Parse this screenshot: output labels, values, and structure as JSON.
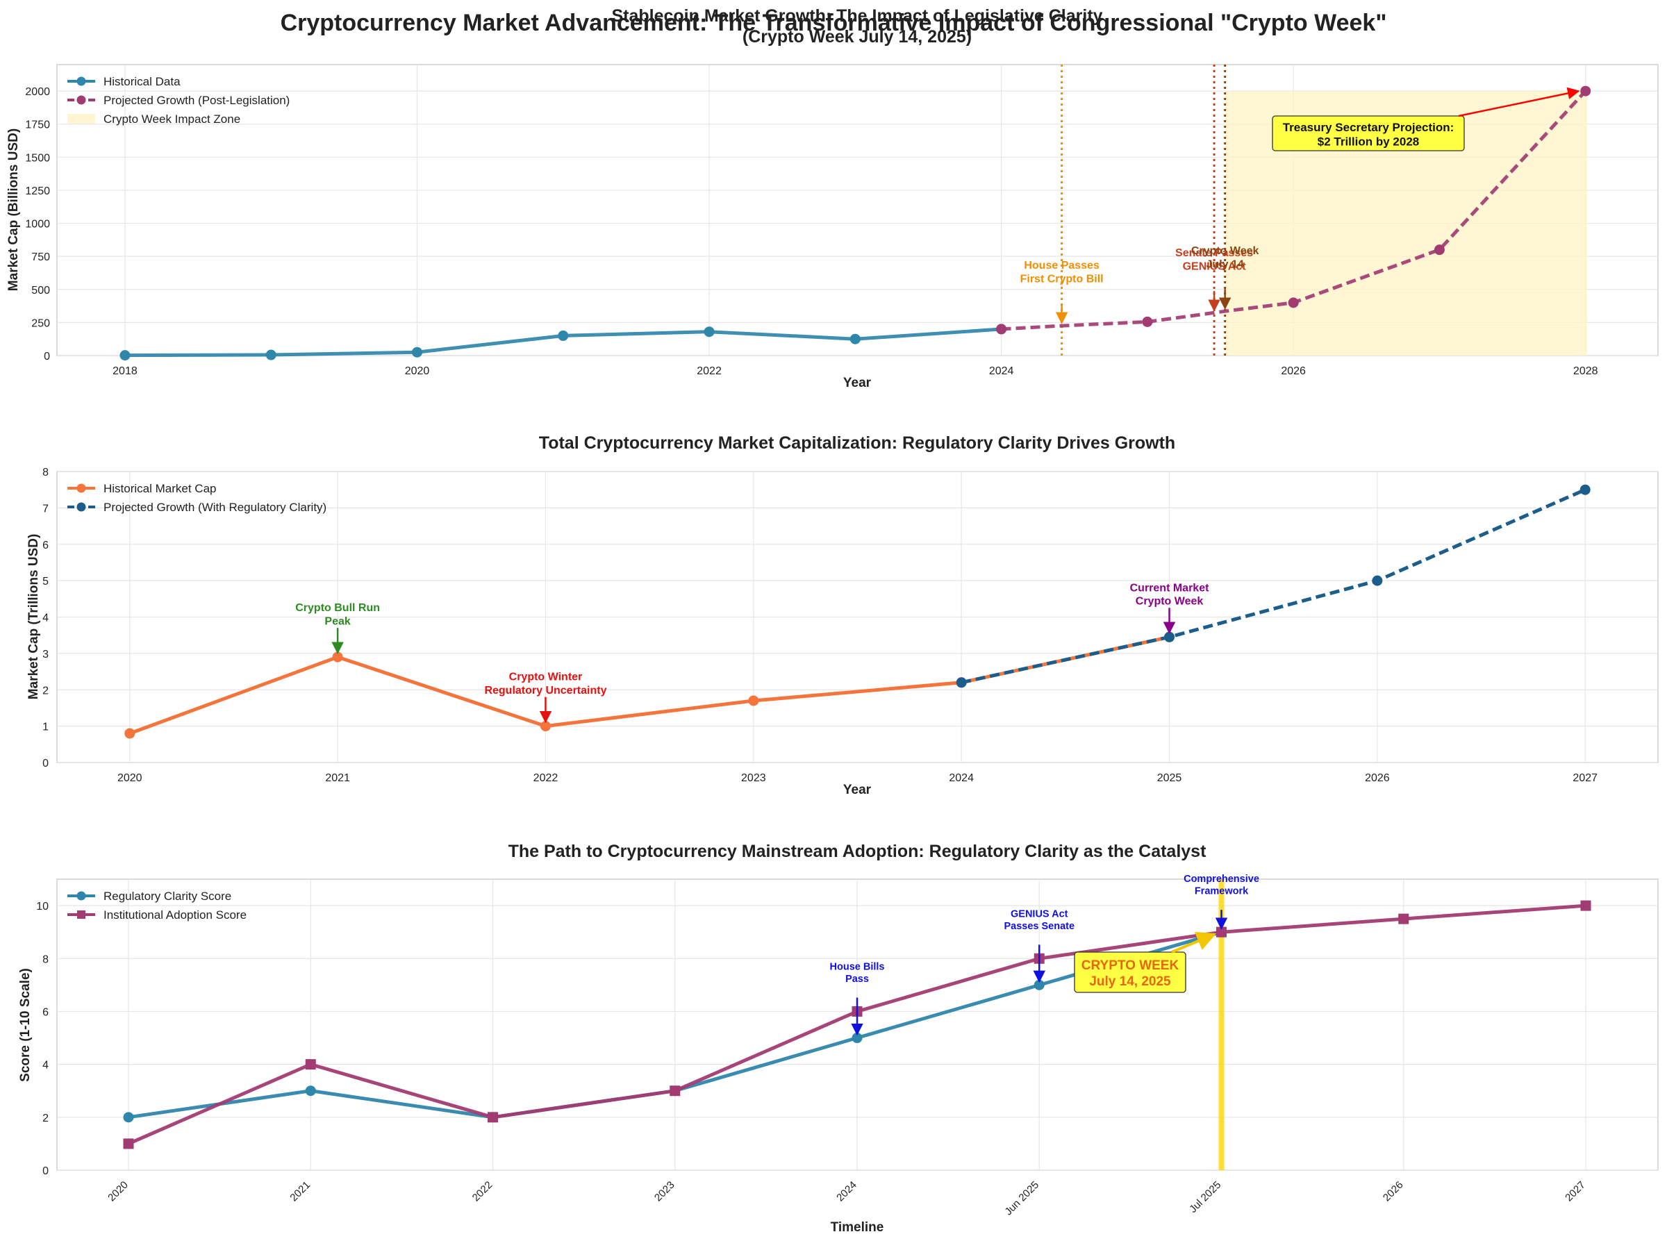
{
  "figure": {
    "suptitle": "Cryptocurrency Market Advancement: The Transformative Impact of Congressional \"Crypto Week\""
  },
  "chart_data": [
    {
      "type": "line",
      "title": "Stablecoin Market Growth: The Impact of Legislative Clarity\n(Crypto Week July 14, 2025)",
      "xlabel": "Year",
      "ylabel": "Market Cap (Billions USD)",
      "xlim": [
        "2017-07-15",
        "2028-07-01"
      ],
      "ylim": [
        0,
        2200
      ],
      "xticks": [
        "2018",
        "2020",
        "2022",
        "2024",
        "2026",
        "2028"
      ],
      "yticks": [
        0,
        250,
        500,
        750,
        1000,
        1250,
        1500,
        1750,
        2000
      ],
      "grid": true,
      "legend": "top-left",
      "series": [
        {
          "name": "Historical Data",
          "color": "#2E86AB",
          "style": "solid",
          "marker": "circle",
          "x": [
            "2018-01-01",
            "2019-01-01",
            "2020-01-01",
            "2021-01-01",
            "2022-01-01",
            "2023-01-01",
            "2024-01-01"
          ],
          "y": [
            2,
            5,
            25,
            150,
            180,
            125,
            200
          ]
        },
        {
          "name": "Projected Growth (Post-Legislation)",
          "color": "#A23B72",
          "style": "dashed",
          "marker": "circle",
          "x": [
            "2024-01-01",
            "2025-01-01",
            "2026-01-01",
            "2027-01-01",
            "2028-01-01"
          ],
          "y": [
            200,
            255,
            400,
            800,
            2000
          ],
          "intermediate": [
            {
              "x": "2024-06-01",
              "y": 225
            },
            {
              "x": "2025-07-14",
              "y": 335
            }
          ]
        }
      ],
      "shaded_region": {
        "label": "Crypto Week Impact Zone",
        "from": "2025-07-14",
        "to": "2028-01-05",
        "color": "#FFF3C4"
      },
      "vlines": [
        {
          "x": "2024-06-01",
          "color": "#F18F01"
        },
        {
          "x": "2025-06-17",
          "color": "#C73E1D"
        },
        {
          "x": "2025-07-14",
          "color": "#8B4513"
        }
      ],
      "annotations": [
        {
          "text": "House Passes\nFirst Crypto Bill",
          "x": "2024-06-01",
          "y": 225,
          "color": "#F18F01"
        },
        {
          "text": "Senate Passes\nGENIUS Act",
          "x": "2025-06-17",
          "y": 320,
          "color": "#C73E1D"
        },
        {
          "text": "Crypto Week\nJuly 14",
          "x": "2025-07-14",
          "y": 335,
          "color": "#8B4513"
        }
      ],
      "callout": {
        "text": "Treasury Secretary Projection:\n$2 Trillion by 2028",
        "x": "2028-01-01",
        "y": 2000
      }
    },
    {
      "type": "line",
      "title": "Total Cryptocurrency Market Capitalization: Regulatory Clarity Drives Growth",
      "xlabel": "Year",
      "ylabel": "Market Cap (Trillions USD)",
      "xlim": [
        2019.65,
        2027.35
      ],
      "ylim": [
        0,
        8
      ],
      "xticks": [
        "2020",
        "2021",
        "2022",
        "2023",
        "2024",
        "2025",
        "2026",
        "2027"
      ],
      "yticks": [
        0,
        1,
        2,
        3,
        4,
        5,
        6,
        7,
        8
      ],
      "grid": true,
      "legend": "top-left",
      "series": [
        {
          "name": "Historical Market Cap",
          "color": "#F4743B",
          "style": "solid",
          "marker": "circle",
          "x": [
            2020,
            2021,
            2022,
            2023,
            2024,
            2025
          ],
          "y": [
            0.8,
            2.9,
            1.0,
            1.7,
            2.2,
            3.45
          ]
        },
        {
          "name": "Projected Growth (With Regulatory Clarity)",
          "color": "#1B5E8C",
          "style": "dashed",
          "marker": "circle",
          "x": [
            2024,
            2025,
            2026,
            2027
          ],
          "y": [
            2.2,
            3.45,
            5.0,
            7.5
          ]
        }
      ],
      "annotations": [
        {
          "text": "Crypto Bull Run\nPeak",
          "x": 2021,
          "y": 2.9,
          "color": "#2E8B22"
        },
        {
          "text": "Crypto Winter\nRegulatory Uncertainty",
          "x": 2022,
          "y": 1.0,
          "color": "#E8100E"
        },
        {
          "text": "Current Market\nCrypto Week",
          "x": 2025,
          "y": 3.45,
          "color": "#8B008B"
        }
      ]
    },
    {
      "type": "line",
      "title": "The Path to Cryptocurrency Mainstream Adoption: Regulatory Clarity as the Catalyst",
      "xlabel": "Timeline",
      "ylabel": "Score (1-10 Scale)",
      "categories": [
        "2020",
        "2021",
        "2022",
        "2023",
        "2024",
        "Jun 2025",
        "Jul 2025",
        "2026",
        "2027"
      ],
      "ylim": [
        0,
        11
      ],
      "yticks": [
        0,
        2,
        4,
        6,
        8,
        10
      ],
      "grid": true,
      "legend": "top-left",
      "series": [
        {
          "name": "Regulatory Clarity Score",
          "color": "#2E86AB",
          "marker": "circle",
          "values": [
            2,
            3,
            2,
            3,
            5,
            7,
            9,
            null,
            null
          ]
        },
        {
          "name": "Institutional Adoption Score",
          "color": "#A23B72",
          "marker": "square",
          "values": [
            1,
            4,
            2,
            3,
            6,
            8,
            9,
            9.5,
            10
          ]
        }
      ],
      "highlight_bar": {
        "category": "Jul 2025",
        "color": "#FFD700"
      },
      "annotations": [
        {
          "text": "House Bills\nPass",
          "category": "2024",
          "y": 5,
          "color": "#1010E0"
        },
        {
          "text": "GENIUS Act\nPasses Senate",
          "category": "Jun 2025",
          "y": 7,
          "color": "#1010E0"
        },
        {
          "text": "Comprehensive\nFramework",
          "category": "Jul 2025",
          "y": 9,
          "color": "#1010E0"
        }
      ],
      "callout": {
        "text": "CRYPTO WEEK\nJuly 14, 2025",
        "category": "Jul 2025",
        "y": 9
      }
    }
  ]
}
